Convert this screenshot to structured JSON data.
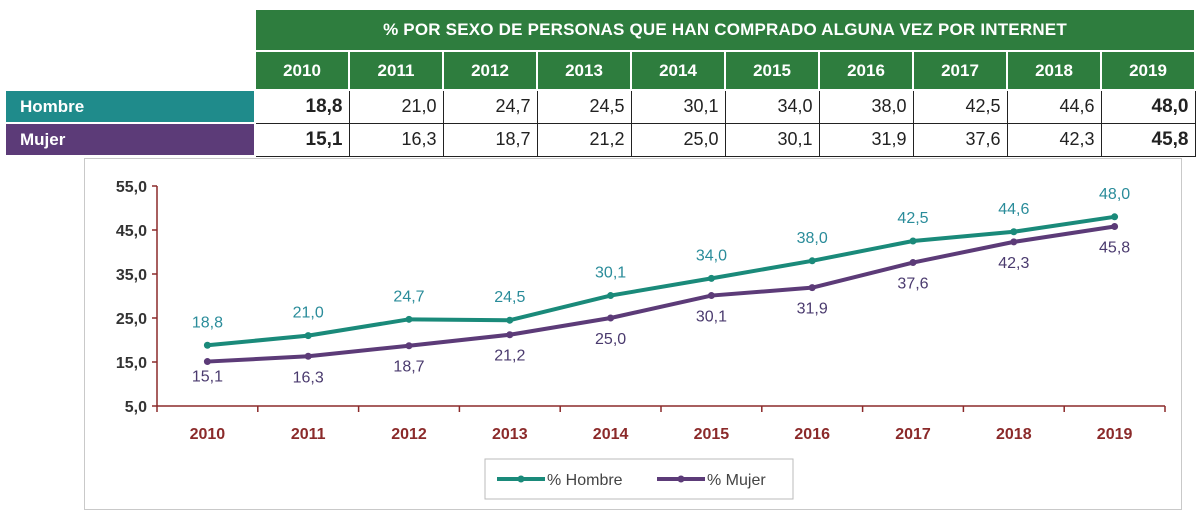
{
  "table": {
    "title": "% POR SEXO DE PERSONAS QUE HAN COMPRADO ALGUNA VEZ POR INTERNET",
    "years": [
      "2010",
      "2011",
      "2012",
      "2013",
      "2014",
      "2015",
      "2016",
      "2017",
      "2018",
      "2019"
    ],
    "rows": [
      {
        "label": "Hombre",
        "values": [
          "18,8",
          "21,0",
          "24,7",
          "24,5",
          "30,1",
          "34,0",
          "38,0",
          "42,5",
          "44,6",
          "48,0"
        ]
      },
      {
        "label": "Mujer",
        "values": [
          "15,1",
          "16,3",
          "18,7",
          "21,2",
          "25,0",
          "30,1",
          "31,9",
          "37,6",
          "42,3",
          "45,8"
        ]
      }
    ]
  },
  "chart_data": {
    "type": "line",
    "title": "",
    "xlabel": "",
    "ylabel": "",
    "categories": [
      "2010",
      "2011",
      "2012",
      "2013",
      "2014",
      "2015",
      "2016",
      "2017",
      "2018",
      "2019"
    ],
    "ylim": [
      5,
      55
    ],
    "yticks": [
      5,
      15,
      25,
      35,
      45,
      55
    ],
    "ytick_labels": [
      "5,0",
      "15,0",
      "25,0",
      "35,0",
      "45,0",
      "55,0"
    ],
    "grid": false,
    "legend_position": "bottom",
    "series": [
      {
        "name": "% Hombre",
        "color": "#1a8a7a",
        "label_color": "#2a8c9a",
        "values": [
          18.8,
          21.0,
          24.7,
          24.5,
          30.1,
          34.0,
          38.0,
          42.5,
          44.6,
          48.0
        ],
        "labels": [
          "18,8",
          "21,0",
          "24,7",
          "24,5",
          "30,1",
          "34,0",
          "38,0",
          "42,5",
          "44,6",
          "48,0"
        ]
      },
      {
        "name": "% Mujer",
        "color": "#5c3b78",
        "label_color": "#4a3a6e",
        "values": [
          15.1,
          16.3,
          18.7,
          21.2,
          25.0,
          30.1,
          31.9,
          37.6,
          42.3,
          45.8
        ],
        "labels": [
          "15,1",
          "16,3",
          "18,7",
          "21,2",
          "25,0",
          "30,1",
          "31,9",
          "37,6",
          "42,3",
          "45,8"
        ]
      }
    ]
  },
  "colors": {
    "header_green": "#2e7d3e",
    "hombre_teal": "#1f8b8b",
    "mujer_purple": "#5c3b78",
    "axis_red": "#8b2a2a"
  }
}
